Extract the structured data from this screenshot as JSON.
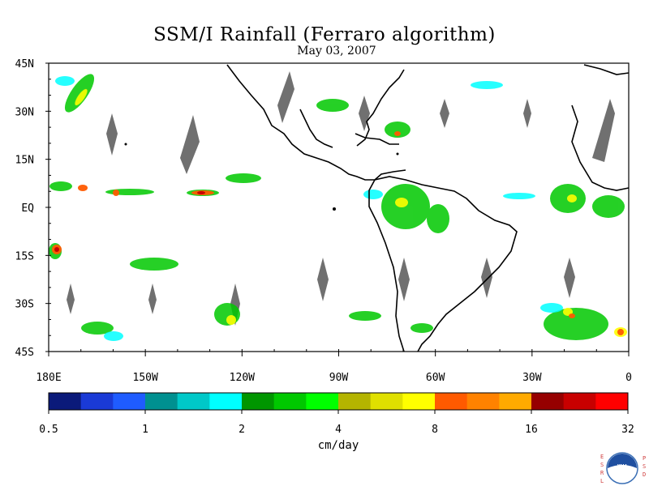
{
  "title": "SSM/I Rainfall (Ferraro algorithm)",
  "date": "May 03, 2007",
  "map": {
    "lon_range": [
      180,
      360
    ],
    "lat_range": [
      -45,
      45
    ],
    "lat_labels": [
      "45N",
      "30N",
      "15N",
      "EQ",
      "15S",
      "30S",
      "45S"
    ],
    "lon_labels": [
      "180E",
      "150W",
      "120W",
      "90W",
      "60W",
      "30W",
      "0"
    ],
    "missing_swath_color": "#707070",
    "coastline_color": "#000000"
  },
  "colorbar": {
    "colors": [
      "#0b1a7a",
      "#1a3ad6",
      "#1f5cff",
      "#009090",
      "#00c8c8",
      "#00ffff",
      "#009600",
      "#00c800",
      "#00ff00",
      "#b4b400",
      "#e0e000",
      "#ffff00",
      "#ff5a00",
      "#ff8200",
      "#ffaa00",
      "#960000",
      "#c80000",
      "#ff0000"
    ],
    "tick_labels": [
      "0.5",
      "1",
      "2",
      "4",
      "8",
      "16",
      "32"
    ],
    "unit": "cm/day"
  },
  "logo": {
    "left_letters": "ESRL",
    "right_letters": "PSD",
    "emblem_text": "NOAA"
  }
}
